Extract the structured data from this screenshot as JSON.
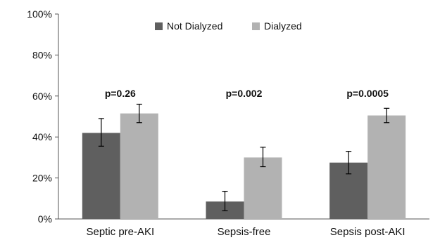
{
  "chart_data": {
    "type": "bar",
    "categories": [
      "Septic pre-AKI",
      "Sepsis-free",
      "Sepsis post-AKI"
    ],
    "series": [
      {
        "name": "Not Dialyzed",
        "color": "#5f5f5f",
        "values": [
          42,
          8.5,
          27.5
        ],
        "error_low": [
          35.5,
          4,
          22
        ],
        "error_high": [
          49,
          13.5,
          33
        ]
      },
      {
        "name": "Dialyzed",
        "color": "#b2b2b2",
        "values": [
          51.5,
          30,
          50.5
        ],
        "error_low": [
          47,
          25.5,
          47
        ],
        "error_high": [
          56,
          35,
          54
        ]
      }
    ],
    "annotations": [
      "p=0.26",
      "p=0.002",
      "p=0.0005"
    ],
    "y_ticks": [
      "0%",
      "20%",
      "40%",
      "60%",
      "80%",
      "100%"
    ],
    "ylim": [
      0,
      100
    ],
    "grid": false,
    "legend_position": "top-center"
  }
}
